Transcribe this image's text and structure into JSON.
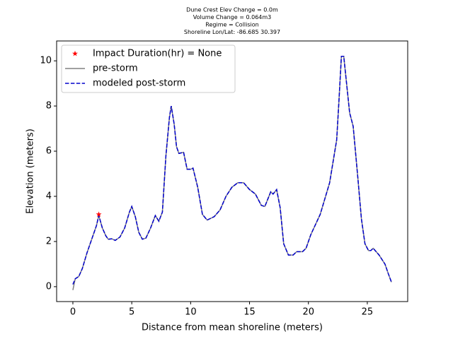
{
  "chart_data": {
    "type": "line",
    "title_lines": [
      "Dune Crest Elev Change = 0.0m",
      "Volume Change = 0.064m3",
      "Regime = Collision",
      "Shoreline Lon/Lat: -86.685 30.397"
    ],
    "x_label": "Distance from mean shoreline (meters)",
    "y_label": "Elevation (meters)",
    "xlim": [
      -1.38,
      28.43
    ],
    "ylim": [
      -0.66,
      10.88
    ],
    "xticks": [
      0,
      5,
      10,
      15,
      20,
      25
    ],
    "yticks": [
      0,
      2,
      4,
      6,
      8,
      10
    ],
    "legend": "upper left",
    "x": [
      0,
      0.2,
      0.5,
      0.8,
      1.2,
      1.6,
      2.0,
      2.2,
      2.5,
      2.8,
      3.0,
      3.3,
      3.6,
      4.0,
      4.4,
      4.8,
      5.0,
      5.3,
      5.6,
      5.9,
      6.2,
      6.6,
      7.0,
      7.3,
      7.6,
      7.9,
      8.2,
      8.35,
      8.6,
      8.8,
      9.0,
      9.4,
      9.7,
      10.0,
      10.2,
      10.6,
      11.0,
      11.4,
      12.0,
      12.5,
      13.0,
      13.5,
      14.0,
      14.5,
      15.0,
      15.5,
      16.0,
      16.3,
      16.8,
      17.0,
      17.3,
      17.6,
      17.9,
      18.3,
      18.7,
      19.0,
      19.5,
      19.8,
      20.2,
      21.0,
      21.8,
      22.4,
      22.6,
      22.8,
      23.0,
      23.5,
      23.8,
      24.2,
      24.5,
      24.8,
      25.1,
      25.3,
      25.5,
      26.0,
      26.5,
      26.8,
      27.05
    ],
    "series": [
      {
        "name": "pre-storm",
        "color": "#808080",
        "dash": false,
        "values": [
          -0.15,
          0.35,
          0.45,
          0.8,
          1.5,
          2.1,
          2.7,
          3.15,
          2.6,
          2.25,
          2.1,
          2.12,
          2.05,
          2.2,
          2.6,
          3.3,
          3.55,
          3.1,
          2.4,
          2.1,
          2.15,
          2.6,
          3.15,
          2.9,
          3.3,
          5.8,
          7.5,
          8.0,
          7.2,
          6.2,
          5.9,
          5.95,
          5.2,
          5.2,
          5.25,
          4.4,
          3.2,
          2.95,
          3.1,
          3.4,
          4.0,
          4.4,
          4.6,
          4.6,
          4.3,
          4.1,
          3.6,
          3.55,
          4.2,
          4.1,
          4.3,
          3.5,
          1.9,
          1.4,
          1.4,
          1.55,
          1.55,
          1.7,
          2.3,
          3.2,
          4.6,
          6.5,
          8.3,
          10.2,
          10.2,
          7.7,
          7.1,
          4.8,
          3.0,
          1.9,
          1.6,
          1.6,
          1.7,
          1.4,
          1.0,
          0.55,
          0.2
        ]
      },
      {
        "name": "modeled post-storm",
        "color": "#0000cc",
        "dash": true,
        "values": [
          0.1,
          0.35,
          0.45,
          0.8,
          1.5,
          2.1,
          2.7,
          3.15,
          2.6,
          2.25,
          2.1,
          2.12,
          2.05,
          2.2,
          2.6,
          3.3,
          3.55,
          3.1,
          2.4,
          2.1,
          2.15,
          2.6,
          3.15,
          2.9,
          3.3,
          5.8,
          7.5,
          8.0,
          7.2,
          6.2,
          5.9,
          5.95,
          5.2,
          5.2,
          5.25,
          4.4,
          3.2,
          2.95,
          3.1,
          3.4,
          4.0,
          4.4,
          4.6,
          4.6,
          4.3,
          4.1,
          3.6,
          3.55,
          4.2,
          4.1,
          4.3,
          3.5,
          1.9,
          1.4,
          1.4,
          1.55,
          1.55,
          1.7,
          2.3,
          3.2,
          4.6,
          6.5,
          8.3,
          10.2,
          10.2,
          7.7,
          7.1,
          4.8,
          3.0,
          1.9,
          1.6,
          1.6,
          1.7,
          1.4,
          1.0,
          0.55,
          0.2
        ]
      }
    ],
    "marker": {
      "name": "Impact Duration(hr) = None",
      "color": "#ff0000",
      "x": [
        2.2
      ],
      "values": [
        3.2
      ]
    }
  }
}
